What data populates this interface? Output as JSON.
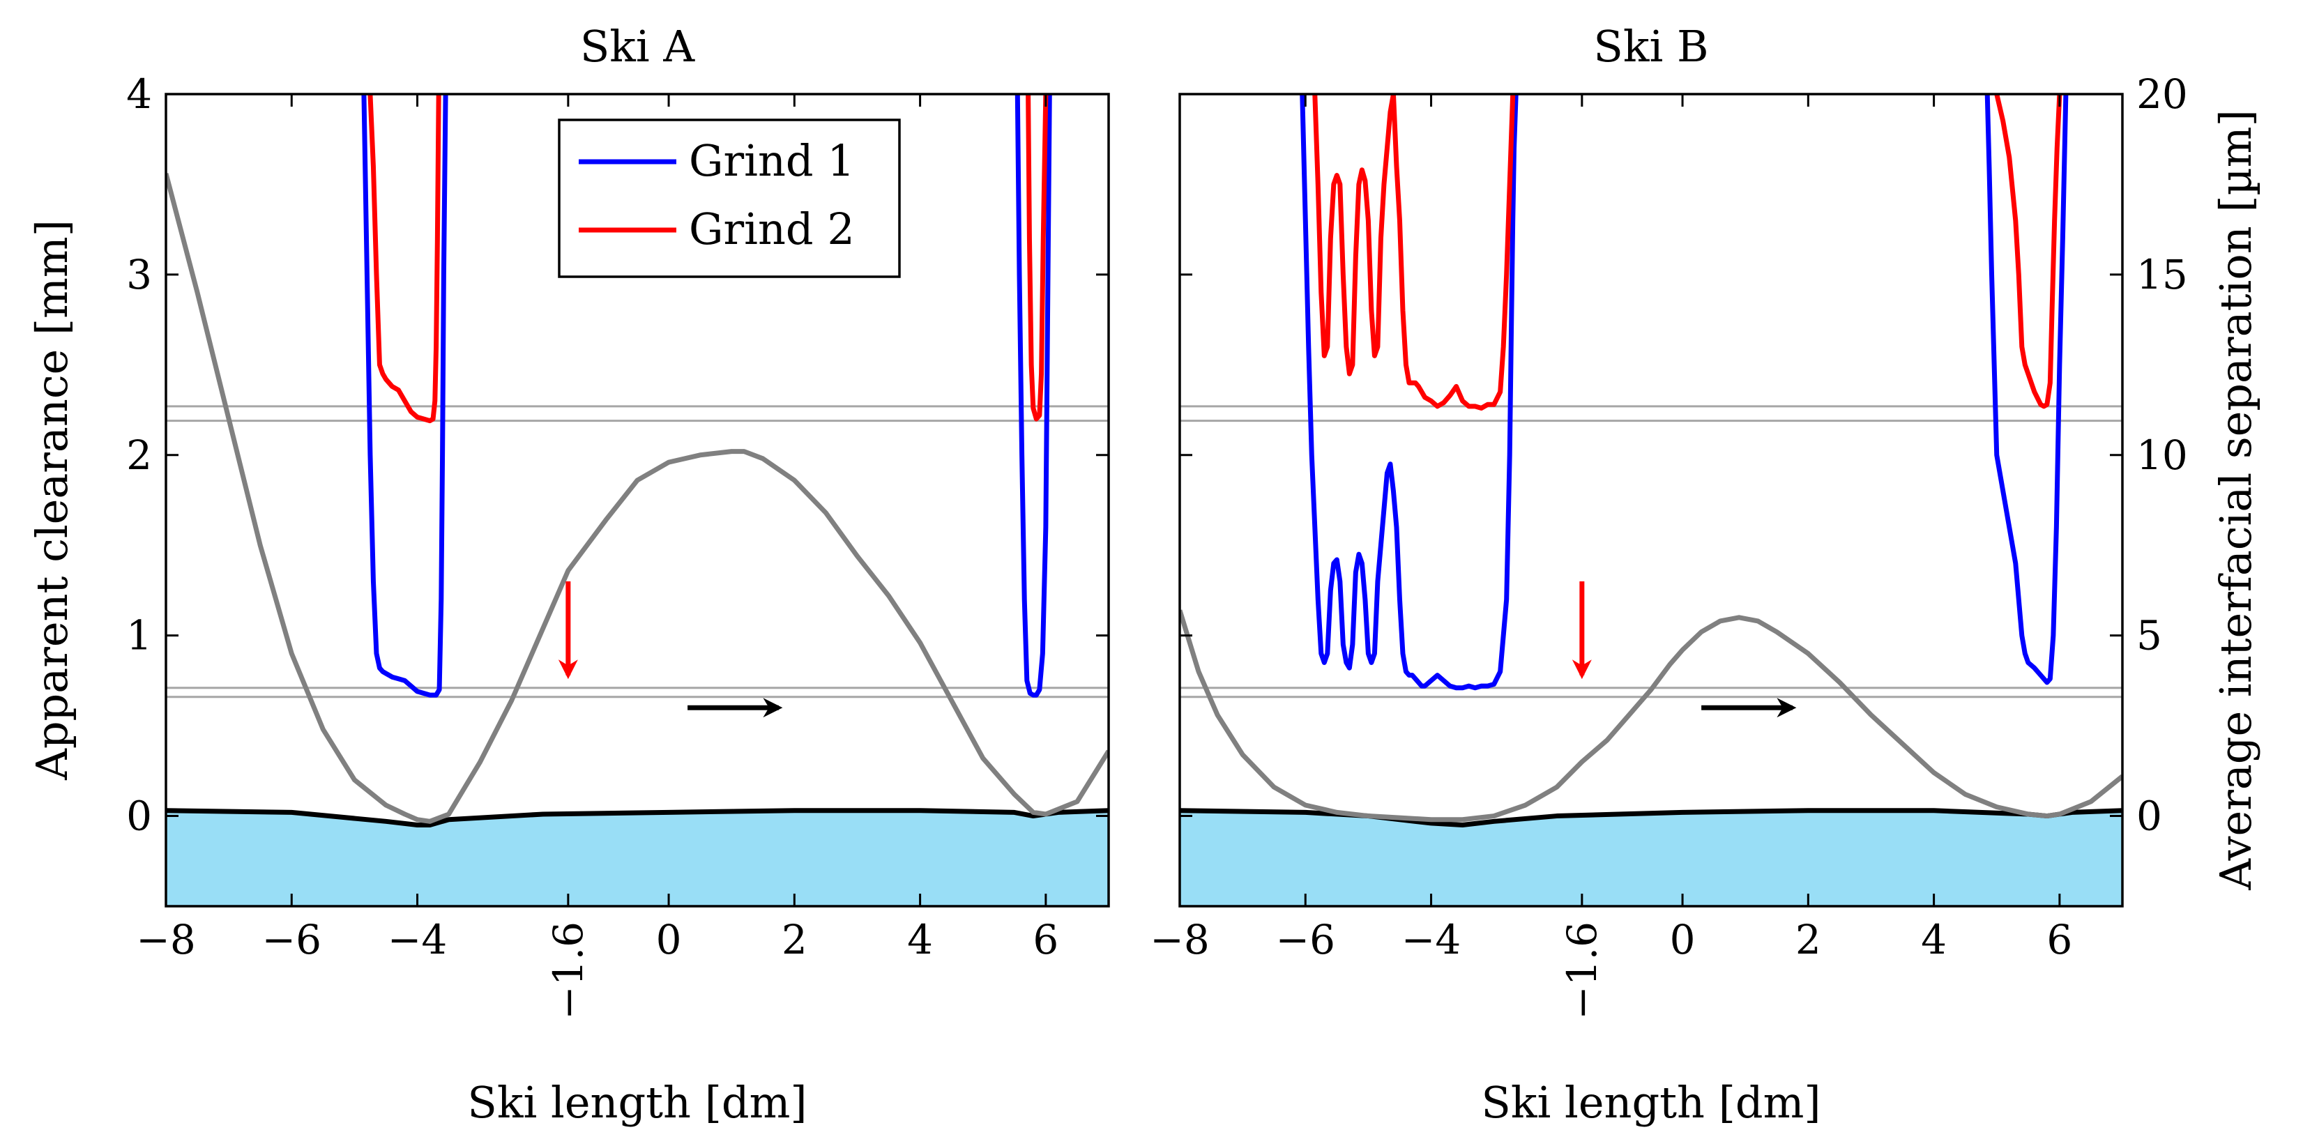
{
  "chart_data": [
    {
      "type": "line",
      "title": "Ski A",
      "xlabel": "Ski length [dm]",
      "ylabel": "Apparent clearance [mm]",
      "xlim": [
        -8,
        7
      ],
      "ylim": [
        -0.5,
        4
      ],
      "x_ticks": [
        -8,
        -6,
        -4,
        0,
        2,
        4,
        6
      ],
      "x_tick_labels": [
        "−8",
        "−6",
        "−4",
        "0",
        "2",
        "4",
        "6"
      ],
      "x_special_tick": {
        "value": -1.6,
        "label": "−1.6"
      },
      "y_ticks": [
        0,
        1,
        2,
        3,
        4
      ],
      "y_tick_labels": [
        "0",
        "1",
        "2",
        "3",
        "4"
      ],
      "legend": {
        "placement": "top-center",
        "entries": [
          "Grind 1",
          "Grind 2"
        ]
      },
      "reference_lines": [
        0.66,
        0.71,
        2.19,
        2.27
      ],
      "ground_profile": {
        "x": [
          -8,
          -6,
          -4.5,
          -4,
          -3.8,
          -3.5,
          -2,
          0,
          2,
          4,
          5.5,
          5.8,
          6.2,
          7
        ],
        "y": [
          0.03,
          0.02,
          -0.03,
          -0.05,
          -0.05,
          -0.02,
          0.01,
          0.02,
          0.03,
          0.03,
          0.02,
          0.0,
          0.02,
          0.03
        ]
      },
      "series": [
        {
          "name": "Grind 1",
          "color": "#0000ff",
          "segments": [
            {
              "x": [
                -4.85,
                -4.8,
                -4.75,
                -4.7,
                -4.65,
                -4.6,
                -4.55,
                -4.5,
                -4.4,
                -4.3,
                -4.2,
                -4.1,
                -4.0,
                -3.9,
                -3.8,
                -3.7,
                -3.65,
                -3.62,
                -3.6,
                -3.58,
                -3.55
              ],
              "y": [
                4.0,
                3.0,
                2.0,
                1.3,
                0.9,
                0.82,
                0.8,
                0.79,
                0.77,
                0.76,
                0.75,
                0.72,
                0.69,
                0.68,
                0.67,
                0.67,
                0.7,
                1.2,
                2.0,
                3.0,
                4.0
              ]
            },
            {
              "x": [
                5.55,
                5.58,
                5.62,
                5.66,
                5.7,
                5.75,
                5.8,
                5.85,
                5.9,
                5.95,
                6.0,
                6.03,
                6.06
              ],
              "y": [
                4.0,
                3.0,
                2.0,
                1.2,
                0.75,
                0.68,
                0.67,
                0.67,
                0.7,
                0.9,
                1.6,
                2.8,
                4.0
              ]
            }
          ]
        },
        {
          "name": "Grind 2",
          "color": "#ff0000",
          "segments": [
            {
              "x": [
                -4.75,
                -4.7,
                -4.65,
                -4.6,
                -4.55,
                -4.5,
                -4.4,
                -4.3,
                -4.2,
                -4.1,
                -4.0,
                -3.9,
                -3.8,
                -3.75,
                -3.72,
                -3.7,
                -3.68,
                -3.66
              ],
              "y": [
                4.0,
                3.6,
                3.0,
                2.5,
                2.45,
                2.42,
                2.38,
                2.36,
                2.3,
                2.24,
                2.21,
                2.2,
                2.19,
                2.2,
                2.3,
                2.6,
                3.2,
                4.0
              ]
            },
            {
              "x": [
                5.72,
                5.74,
                5.77,
                5.8,
                5.85,
                5.9,
                5.93,
                5.96,
                6.0
              ],
              "y": [
                4.0,
                3.2,
                2.5,
                2.26,
                2.2,
                2.22,
                2.45,
                3.2,
                4.0
              ]
            }
          ]
        }
      ],
      "secondary_axis": {
        "ylabel": "",
        "ylim": [
          -2.5,
          20
        ],
        "series": {
          "name": "Average interfacial separation",
          "color": "#808080",
          "x": [
            -8,
            -7.5,
            -7,
            -6.5,
            -6,
            -5.5,
            -5,
            -4.5,
            -4.2,
            -4,
            -3.8,
            -3.5,
            -3,
            -2.5,
            -2,
            -1.6,
            -1,
            -0.5,
            0,
            0.5,
            1,
            1.2,
            1.5,
            2,
            2.5,
            3,
            3.5,
            4,
            4.5,
            5,
            5.5,
            5.8,
            6,
            6.5,
            7
          ],
          "y": [
            17.8,
            14.5,
            11,
            7.5,
            4.5,
            2.4,
            1.0,
            0.3,
            0.05,
            -0.1,
            -0.15,
            0.05,
            1.5,
            3.2,
            5.2,
            6.8,
            8.2,
            9.3,
            9.8,
            10.0,
            10.1,
            10.1,
            9.9,
            9.3,
            8.4,
            7.2,
            6.1,
            4.8,
            3.2,
            1.6,
            0.6,
            0.1,
            0.05,
            0.4,
            1.8
          ]
        }
      },
      "annotations": [
        {
          "type": "red-arrow-down",
          "x": -1.6,
          "y_start": 1.3,
          "y_end": 0.78
        },
        {
          "type": "black-arrow-right",
          "x_start": 0.3,
          "x_end": 1.75,
          "y": 0.6
        }
      ]
    },
    {
      "type": "line",
      "title": "Ski B",
      "xlabel": "Ski length [dm]",
      "ylabel": "",
      "xlim": [
        -8,
        7
      ],
      "ylim": [
        -0.5,
        4
      ],
      "x_ticks": [
        -8,
        -6,
        -4,
        0,
        2,
        4,
        6
      ],
      "x_tick_labels": [
        "−8",
        "−6",
        "−4",
        "0",
        "2",
        "4",
        "6"
      ],
      "x_special_tick": {
        "value": -1.6,
        "label": "−1.6"
      },
      "y_ticks": [
        0,
        1,
        2,
        3,
        4
      ],
      "y_tick_labels": [
        "",
        "",
        "",
        "",
        ""
      ],
      "reference_lines": [
        0.66,
        0.71,
        2.19,
        2.27
      ],
      "ground_profile": {
        "x": [
          -8,
          -6,
          -5,
          -4.5,
          -4,
          -3.5,
          -3,
          -2,
          0,
          2,
          4,
          5.5,
          5.8,
          6.2,
          7
        ],
        "y": [
          0.03,
          0.02,
          0.0,
          -0.02,
          -0.04,
          -0.05,
          -0.03,
          0.0,
          0.02,
          0.03,
          0.03,
          0.01,
          0.0,
          0.02,
          0.03
        ]
      },
      "series": [
        {
          "name": "Grind 1",
          "color": "#0000ff",
          "segments": [
            {
              "x": [
                -6.05,
                -6.0,
                -5.95,
                -5.9,
                -5.85,
                -5.8,
                -5.75,
                -5.7,
                -5.65,
                -5.6,
                -5.55,
                -5.5,
                -5.45,
                -5.4,
                -5.35,
                -5.3,
                -5.25,
                -5.2,
                -5.15,
                -5.1,
                -5.05,
                -5.0,
                -4.95,
                -4.9,
                -4.85,
                -4.8,
                -4.75,
                -4.7,
                -4.65,
                -4.6,
                -4.55,
                -4.5,
                -4.45,
                -4.4,
                -4.35,
                -4.3,
                -4.25,
                -4.2,
                -4.15,
                -4.1,
                -4.0,
                -3.9,
                -3.8,
                -3.7,
                -3.6,
                -3.5,
                -3.4,
                -3.3,
                -3.2,
                -3.1,
                -3.0,
                -2.9,
                -2.8,
                -2.75,
                -2.72,
                -2.7,
                -2.68,
                -2.65
              ],
              "y": [
                4.0,
                3.3,
                2.6,
                2.0,
                1.6,
                1.2,
                0.9,
                0.85,
                0.9,
                1.25,
                1.4,
                1.42,
                1.3,
                0.95,
                0.85,
                0.82,
                0.95,
                1.35,
                1.45,
                1.4,
                1.2,
                0.9,
                0.85,
                0.9,
                1.3,
                1.5,
                1.7,
                1.9,
                1.95,
                1.8,
                1.6,
                1.2,
                0.9,
                0.8,
                0.78,
                0.78,
                0.76,
                0.74,
                0.72,
                0.72,
                0.75,
                0.78,
                0.75,
                0.72,
                0.71,
                0.71,
                0.72,
                0.71,
                0.72,
                0.72,
                0.73,
                0.8,
                1.2,
                2.0,
                2.8,
                3.3,
                3.7,
                4.0
              ]
            },
            {
              "x": [
                4.85,
                4.88,
                4.92,
                4.96,
                5.0,
                5.1,
                5.2,
                5.3,
                5.35,
                5.4,
                5.45,
                5.5,
                5.6,
                5.7,
                5.8,
                5.85,
                5.9,
                5.95,
                6.0,
                6.05,
                6.1
              ],
              "y": [
                4.0,
                3.6,
                3.0,
                2.5,
                2.0,
                1.8,
                1.6,
                1.4,
                1.2,
                1.0,
                0.9,
                0.85,
                0.82,
                0.78,
                0.74,
                0.76,
                1.0,
                1.6,
                2.5,
                3.2,
                4.0
              ]
            }
          ]
        },
        {
          "name": "Grind 2",
          "color": "#ff0000",
          "segments": [
            {
              "x": [
                -5.85,
                -5.8,
                -5.75,
                -5.7,
                -5.65,
                -5.6,
                -5.55,
                -5.5,
                -5.45,
                -5.4,
                -5.35,
                -5.3,
                -5.25,
                -5.2,
                -5.15,
                -5.1,
                -5.05,
                -5.0,
                -4.95,
                -4.9,
                -4.85,
                -4.8,
                -4.75,
                -4.7,
                -4.65,
                -4.6,
                -4.55,
                -4.5,
                -4.45,
                -4.4,
                -4.35,
                -4.3,
                -4.25,
                -4.2,
                -4.15,
                -4.1,
                -4.0,
                -3.9,
                -3.8,
                -3.7,
                -3.6,
                -3.5,
                -3.4,
                -3.3,
                -3.2,
                -3.1,
                -3.0,
                -2.9,
                -2.85,
                -2.8,
                -2.75,
                -2.72,
                -2.7
              ],
              "y": [
                4.0,
                3.5,
                2.9,
                2.55,
                2.6,
                3.2,
                3.5,
                3.55,
                3.5,
                3.0,
                2.6,
                2.45,
                2.5,
                3.1,
                3.5,
                3.58,
                3.52,
                3.3,
                2.8,
                2.55,
                2.6,
                3.2,
                3.5,
                3.7,
                3.9,
                4.0,
                3.6,
                3.3,
                2.8,
                2.5,
                2.4,
                2.4,
                2.4,
                2.38,
                2.35,
                2.32,
                2.3,
                2.27,
                2.29,
                2.33,
                2.38,
                2.3,
                2.27,
                2.27,
                2.26,
                2.28,
                2.28,
                2.35,
                2.6,
                3.0,
                3.5,
                3.8,
                4.0
              ]
            },
            {
              "x": [
                5.0,
                5.1,
                5.2,
                5.3,
                5.35,
                5.4,
                5.45,
                5.5,
                5.6,
                5.7,
                5.75,
                5.8,
                5.85,
                5.88,
                5.92,
                5.96,
                6.0
              ],
              "y": [
                4.0,
                3.85,
                3.65,
                3.3,
                3.0,
                2.6,
                2.5,
                2.45,
                2.35,
                2.28,
                2.27,
                2.28,
                2.4,
                2.8,
                3.3,
                3.7,
                4.0
              ]
            }
          ]
        }
      ],
      "secondary_axis": {
        "ylabel": "Average interfacial separation [µm]",
        "ylim": [
          -2.5,
          20
        ],
        "y_ticks": [
          0,
          5,
          10,
          15,
          20
        ],
        "y_tick_labels": [
          "0",
          "5",
          "10",
          "15",
          "20"
        ],
        "series": {
          "name": "Average interfacial separation",
          "color": "#808080",
          "x": [
            -8,
            -7.7,
            -7.4,
            -7,
            -6.5,
            -6,
            -5.5,
            -5,
            -4.5,
            -4,
            -3.5,
            -3,
            -2.5,
            -2,
            -1.6,
            -1.2,
            -0.8,
            -0.5,
            -0.2,
            0,
            0.3,
            0.6,
            0.9,
            1.2,
            1.5,
            2,
            2.5,
            3,
            3.5,
            4,
            4.5,
            5,
            5.5,
            5.8,
            6,
            6.5,
            7
          ],
          "y": [
            5.7,
            4.0,
            2.8,
            1.7,
            0.8,
            0.3,
            0.1,
            0.0,
            -0.05,
            -0.1,
            -0.1,
            0.0,
            0.3,
            0.8,
            1.5,
            2.1,
            2.9,
            3.5,
            4.2,
            4.6,
            5.1,
            5.4,
            5.5,
            5.4,
            5.1,
            4.5,
            3.7,
            2.8,
            2.0,
            1.2,
            0.6,
            0.25,
            0.05,
            0.0,
            0.05,
            0.4,
            1.1
          ]
        }
      },
      "annotations": [
        {
          "type": "red-arrow-down",
          "x": -1.6,
          "y_start": 1.3,
          "y_end": 0.78
        },
        {
          "type": "black-arrow-right",
          "x_start": 0.3,
          "x_end": 1.75,
          "y": 0.6
        }
      ]
    }
  ]
}
